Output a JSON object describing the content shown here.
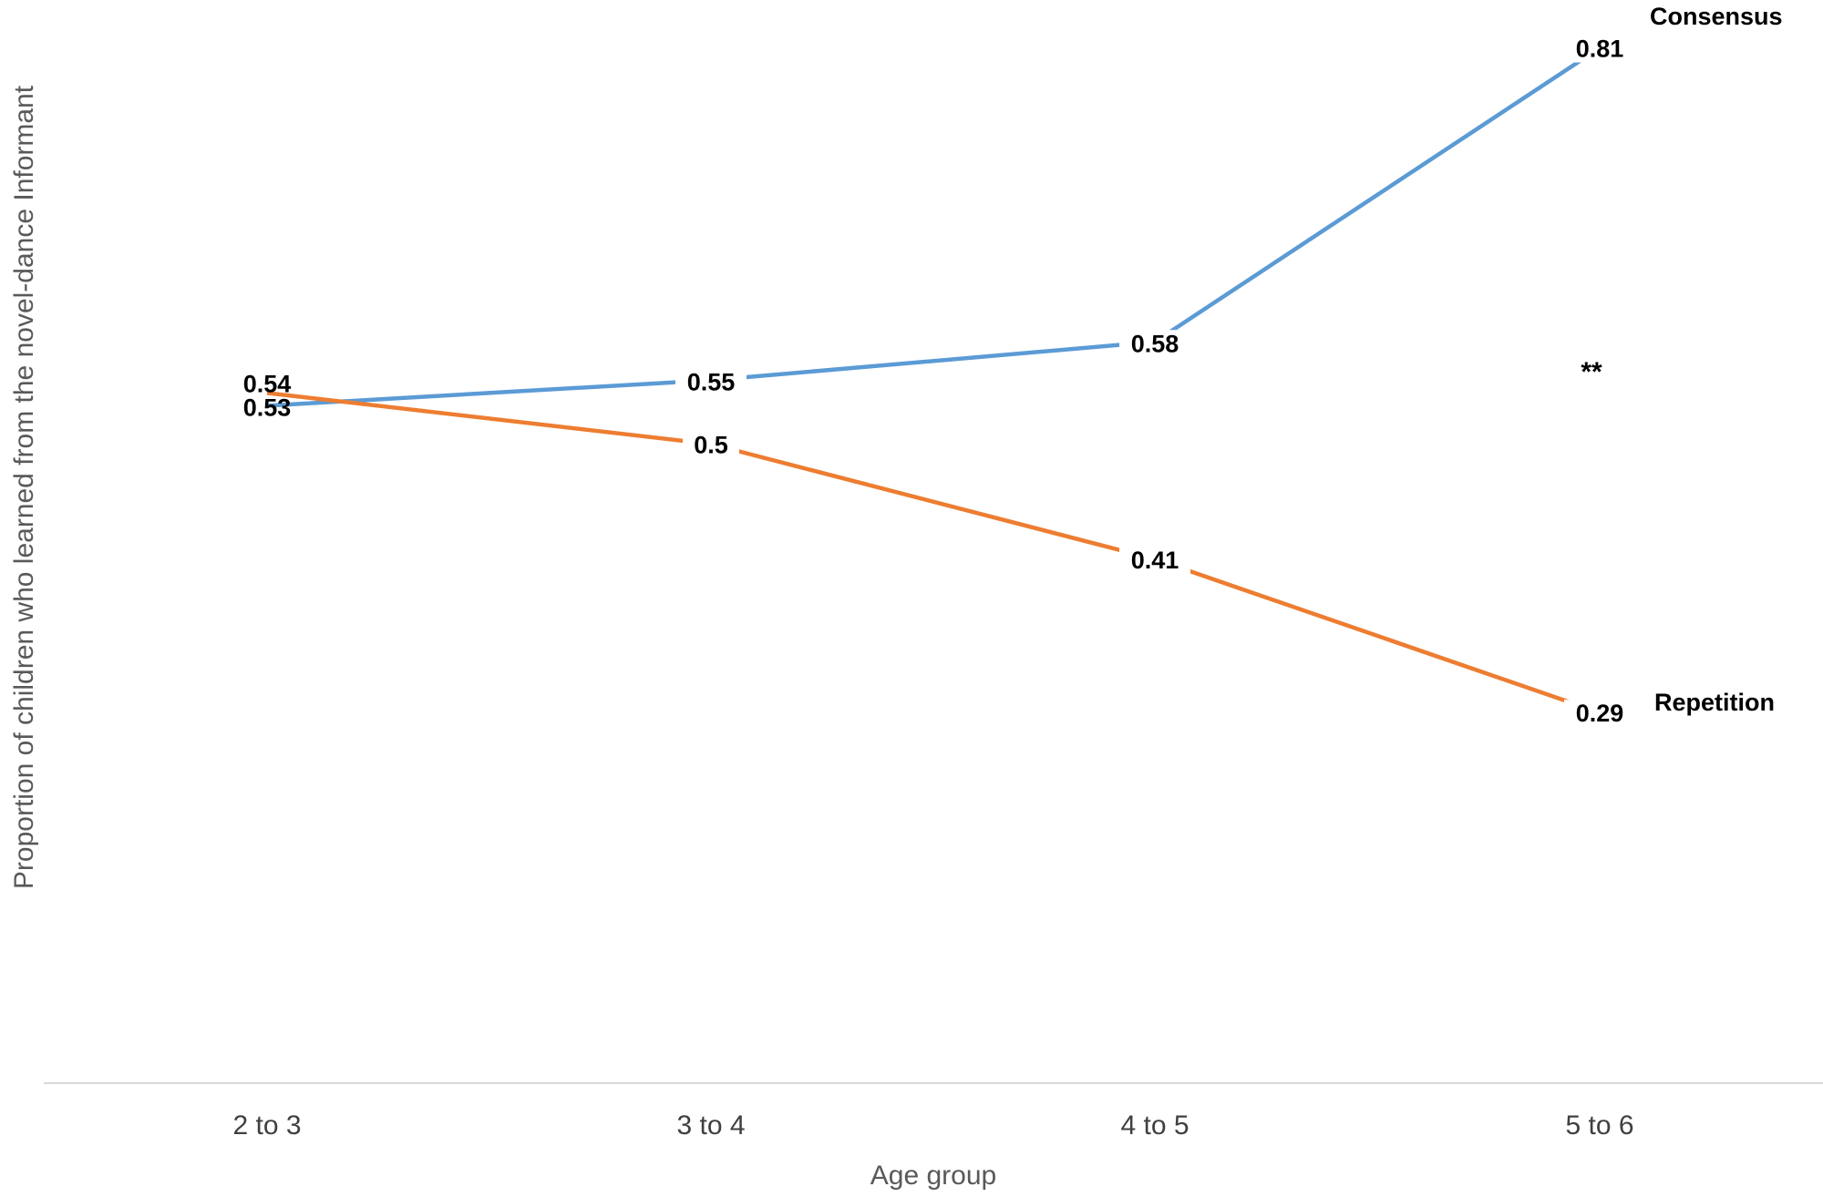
{
  "chart_data": {
    "type": "line",
    "title": "",
    "xlabel": "Age group",
    "ylabel": "Proportion of children who learned from  the novel-dance Informant",
    "categories": [
      "2 to 3",
      "3 to 4",
      "4 to 5",
      "5 to 6"
    ],
    "ylim": [
      0,
      0.81
    ],
    "grid": false,
    "legend": "series labels at line ends (right)",
    "series": [
      {
        "name": "Consensus",
        "values": [
          0.53,
          0.55,
          0.58,
          0.81
        ],
        "labels": [
          "0.53",
          "0.55",
          "0.58",
          "0.81"
        ],
        "color": "#5b9bd5"
      },
      {
        "name": "Repetition",
        "values": [
          0.54,
          0.5,
          0.41,
          0.29
        ],
        "labels": [
          "0.54",
          "0.5",
          "0.41",
          "0.29"
        ],
        "color": "#ed7d31"
      }
    ],
    "annotations": [
      {
        "text": "**",
        "category": "5 to 6"
      }
    ],
    "axis_color": "#d9d9d9"
  }
}
